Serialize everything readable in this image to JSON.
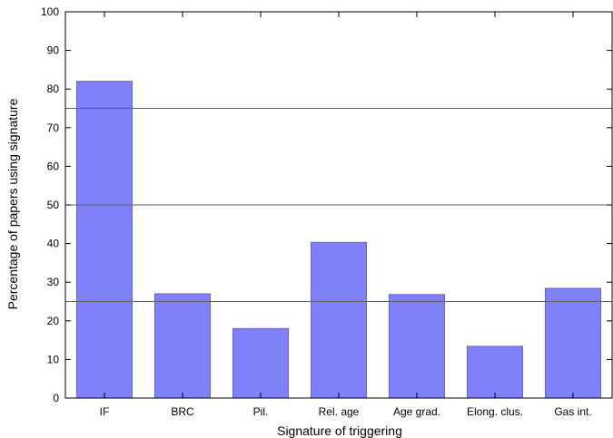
{
  "chart_data": {
    "type": "bar",
    "categories": [
      "IF",
      "BRC",
      "Pil.",
      "Rel. age",
      "Age grad.",
      "Elong. clus.",
      "Gas int."
    ],
    "values": [
      82,
      27,
      18,
      40.3,
      26.8,
      13.4,
      28.4
    ],
    "xlabel": "Signature of triggering",
    "ylabel": "Percentage of papers using signature",
    "ylim": [
      0,
      100
    ],
    "yticks": [
      0,
      10,
      20,
      30,
      40,
      50,
      60,
      70,
      80,
      90,
      100
    ],
    "reference_lines": [
      25,
      50,
      75
    ],
    "grid": false,
    "legend": "none",
    "colors": {
      "bar_fill": "#8080f8",
      "bar_stroke": "#6565c8",
      "reference_line": "#606060",
      "axis": "#000000"
    }
  }
}
